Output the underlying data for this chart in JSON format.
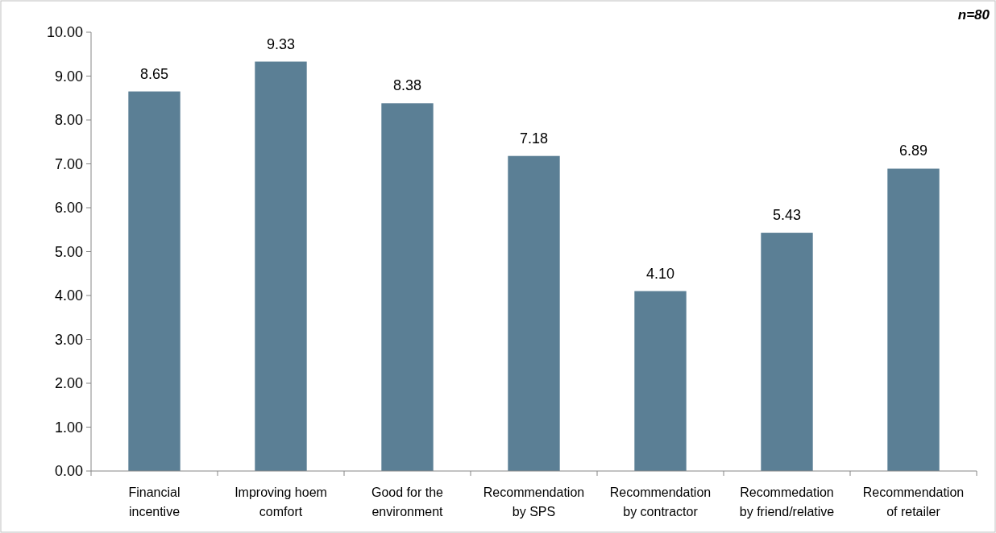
{
  "chart_data": {
    "type": "bar",
    "categories": [
      "Financial incentive",
      "Improving hoem comfort",
      "Good for the environment",
      "Recommendation by SPS",
      "Recommendation by contractor",
      "Recommedation by friend/relative",
      "Recommendation of retailer"
    ],
    "values": [
      8.65,
      9.33,
      8.38,
      7.18,
      4.1,
      5.43,
      6.89
    ],
    "value_labels": [
      "8.65",
      "9.33",
      "8.38",
      "7.18",
      "4.10",
      "5.43",
      "6.89"
    ],
    "color": "#5b7f95",
    "ylim": [
      0,
      10
    ],
    "yticks": [
      {
        "value": 0,
        "label": "0.00"
      },
      {
        "value": 1,
        "label": "1.00"
      },
      {
        "value": 2,
        "label": "2.00"
      },
      {
        "value": 3,
        "label": "3.00"
      },
      {
        "value": 4,
        "label": "4.00"
      },
      {
        "value": 5,
        "label": "5.00"
      },
      {
        "value": 6,
        "label": "6.00"
      },
      {
        "value": 7,
        "label": "7.00"
      },
      {
        "value": 8,
        "label": "8.00"
      },
      {
        "value": 9,
        "label": "9.00"
      },
      {
        "value": 10,
        "label": "10.00"
      }
    ],
    "annotations": [
      "n=80"
    ],
    "grid": false
  }
}
